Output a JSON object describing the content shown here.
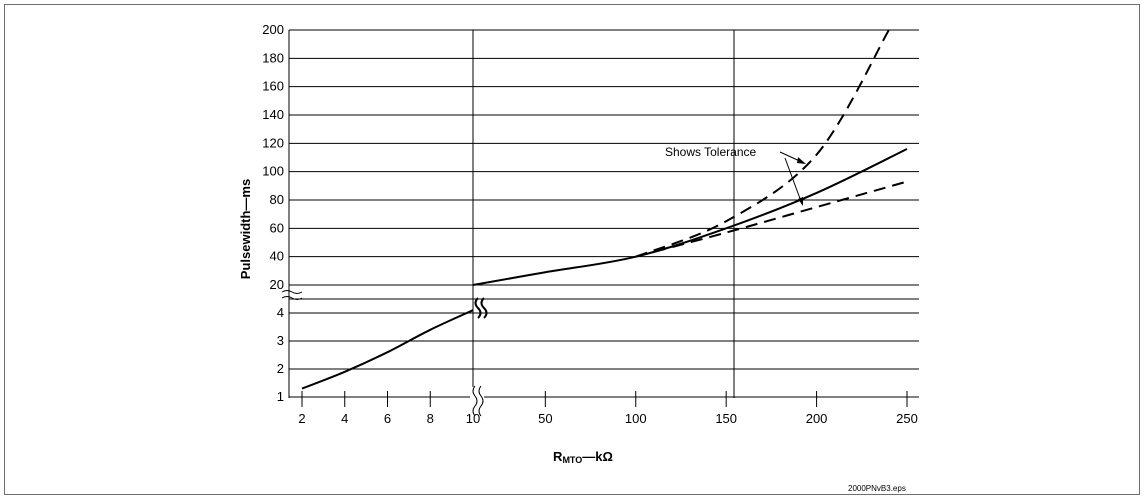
{
  "chart_data": {
    "type": "line",
    "title": "",
    "xlabel": {
      "main": "R",
      "sub": "MTO",
      "rest": "—kΩ"
    },
    "ylabel": "Pulsewidth—ms",
    "x_ticks": [
      "2",
      "4",
      "6",
      "8",
      "10",
      "50",
      "100",
      "150",
      "200",
      "250"
    ],
    "y_ticks_low": [
      "1",
      "2",
      "3",
      "4"
    ],
    "y_ticks_high": [
      "20",
      "40",
      "60",
      "80",
      "100",
      "120",
      "140",
      "160",
      "180",
      "200"
    ],
    "x_scale": "broken: 2–10 and 10–250",
    "y_scale": "broken: 1–4 and 20–200",
    "grid": true,
    "annotation": "Shows Tolerance",
    "series": [
      {
        "style": "solid",
        "segment": "low",
        "x": [
          2,
          4,
          6,
          8,
          10
        ],
        "y": [
          1.3,
          1.9,
          2.6,
          3.4,
          4.1
        ]
      },
      {
        "style": "solid",
        "segment": "high",
        "x": [
          10,
          50,
          100,
          150,
          200,
          250
        ],
        "y": [
          20,
          29,
          40,
          60,
          85,
          116
        ]
      },
      {
        "style": "dashed",
        "segment": "high",
        "x": [
          100,
          150,
          200,
          240
        ],
        "y": [
          40,
          65,
          112,
          200
        ]
      },
      {
        "style": "dashed",
        "segment": "high",
        "x": [
          100,
          150,
          200,
          250
        ],
        "y": [
          40,
          57,
          75,
          93
        ]
      }
    ]
  },
  "footer": {
    "filename": "2000PNvB3.eps"
  }
}
